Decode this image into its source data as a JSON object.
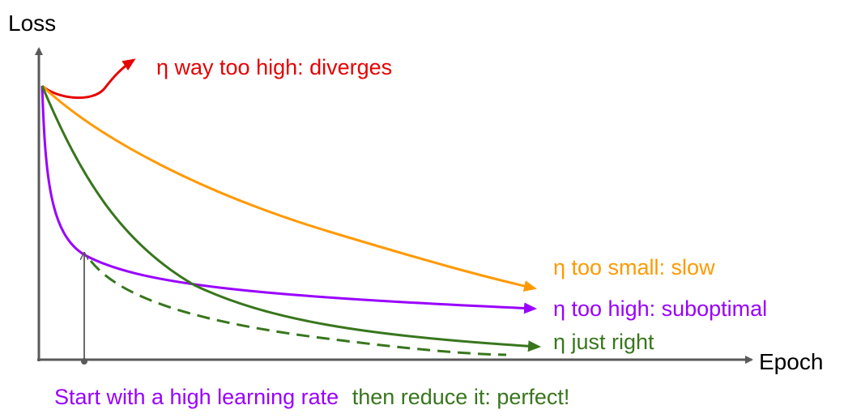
{
  "axes": {
    "y_label": "Loss",
    "x_label": "Epoch"
  },
  "curves": {
    "diverges": {
      "label": "η way too high: diverges",
      "color": "#e60000"
    },
    "slow": {
      "label": "η too small: slow",
      "color": "#ff9900"
    },
    "suboptimal": {
      "label": "η too high: suboptimal",
      "color": "#9900ff"
    },
    "just_right": {
      "label": "η just right",
      "color": "#38761d"
    }
  },
  "caption": {
    "part1": "Start with a high learning rate",
    "part2": "then reduce it: perfect!",
    "color1": "#9900ff",
    "color2": "#38761d"
  },
  "axis_color": "#595959"
}
